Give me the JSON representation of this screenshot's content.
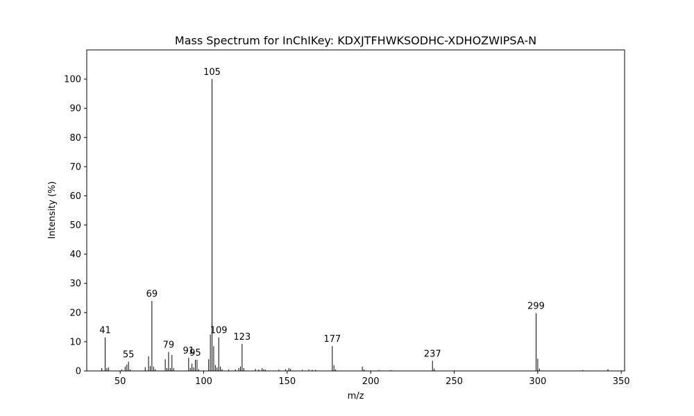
{
  "chart_data": {
    "type": "bar",
    "title": "Mass Spectrum for InChIKey: KDXJTFHWKSODHC-XDHOZWIPSA-N",
    "xlabel": "m/z",
    "ylabel": "Intensity (%)",
    "xlim": [
      30,
      352
    ],
    "ylim": [
      0,
      110
    ],
    "xticks": [
      50,
      100,
      150,
      200,
      250,
      300,
      350
    ],
    "yticks": [
      0,
      10,
      20,
      30,
      40,
      50,
      60,
      70,
      80,
      90,
      100
    ],
    "grid": false,
    "bar_color": "#000000",
    "peaks": [
      {
        "mz": 39,
        "intensity": 1.0
      },
      {
        "mz": 41,
        "intensity": 11.5,
        "label": "41"
      },
      {
        "mz": 42,
        "intensity": 1.0
      },
      {
        "mz": 43,
        "intensity": 1.2
      },
      {
        "mz": 51,
        "intensity": 0.5
      },
      {
        "mz": 53,
        "intensity": 1.5
      },
      {
        "mz": 54,
        "intensity": 2.2
      },
      {
        "mz": 55,
        "intensity": 3.2,
        "label": "55"
      },
      {
        "mz": 56,
        "intensity": 0.5
      },
      {
        "mz": 65,
        "intensity": 1.3
      },
      {
        "mz": 67,
        "intensity": 5.0
      },
      {
        "mz": 68,
        "intensity": 1.7
      },
      {
        "mz": 69,
        "intensity": 24.0,
        "label": "69"
      },
      {
        "mz": 70,
        "intensity": 1.5
      },
      {
        "mz": 71,
        "intensity": 0.6
      },
      {
        "mz": 77,
        "intensity": 4.0
      },
      {
        "mz": 78,
        "intensity": 1.0
      },
      {
        "mz": 79,
        "intensity": 6.5,
        "label": "79"
      },
      {
        "mz": 80,
        "intensity": 1.0
      },
      {
        "mz": 81,
        "intensity": 5.5
      },
      {
        "mz": 82,
        "intensity": 1.0
      },
      {
        "mz": 91,
        "intensity": 4.5,
        "label": "91"
      },
      {
        "mz": 92,
        "intensity": 1.0
      },
      {
        "mz": 93,
        "intensity": 2.5
      },
      {
        "mz": 94,
        "intensity": 1.2
      },
      {
        "mz": 95,
        "intensity": 3.8,
        "label": "95"
      },
      {
        "mz": 96,
        "intensity": 3.8
      },
      {
        "mz": 97,
        "intensity": 0.6
      },
      {
        "mz": 103,
        "intensity": 4.0
      },
      {
        "mz": 104,
        "intensity": 12.5
      },
      {
        "mz": 105,
        "intensity": 100.0,
        "label": "105"
      },
      {
        "mz": 106,
        "intensity": 8.5
      },
      {
        "mz": 107,
        "intensity": 2.0
      },
      {
        "mz": 108,
        "intensity": 1.2
      },
      {
        "mz": 109,
        "intensity": 11.5,
        "label": "109"
      },
      {
        "mz": 110,
        "intensity": 1.5
      },
      {
        "mz": 111,
        "intensity": 0.6
      },
      {
        "mz": 115,
        "intensity": 0.5
      },
      {
        "mz": 119,
        "intensity": 0.5
      },
      {
        "mz": 121,
        "intensity": 1.0
      },
      {
        "mz": 122,
        "intensity": 1.5
      },
      {
        "mz": 123,
        "intensity": 9.3,
        "label": "123"
      },
      {
        "mz": 124,
        "intensity": 1.0
      },
      {
        "mz": 131,
        "intensity": 0.7
      },
      {
        "mz": 133,
        "intensity": 0.5
      },
      {
        "mz": 135,
        "intensity": 1.0
      },
      {
        "mz": 136,
        "intensity": 0.6
      },
      {
        "mz": 137,
        "intensity": 0.4
      },
      {
        "mz": 145,
        "intensity": 0.4
      },
      {
        "mz": 149,
        "intensity": 0.6
      },
      {
        "mz": 151,
        "intensity": 1.0
      },
      {
        "mz": 152,
        "intensity": 0.7
      },
      {
        "mz": 159,
        "intensity": 0.4
      },
      {
        "mz": 163,
        "intensity": 0.5
      },
      {
        "mz": 165,
        "intensity": 0.4
      },
      {
        "mz": 167,
        "intensity": 0.4
      },
      {
        "mz": 177,
        "intensity": 8.5,
        "label": "177"
      },
      {
        "mz": 178,
        "intensity": 2.0
      },
      {
        "mz": 179,
        "intensity": 0.5
      },
      {
        "mz": 195,
        "intensity": 1.5
      },
      {
        "mz": 196,
        "intensity": 0.5
      },
      {
        "mz": 205,
        "intensity": 0.3
      },
      {
        "mz": 212,
        "intensity": 0.3
      },
      {
        "mz": 237,
        "intensity": 3.5,
        "label": "237"
      },
      {
        "mz": 238,
        "intensity": 0.8
      },
      {
        "mz": 299,
        "intensity": 19.8,
        "label": "299"
      },
      {
        "mz": 300,
        "intensity": 4.2
      },
      {
        "mz": 301,
        "intensity": 0.8
      },
      {
        "mz": 327,
        "intensity": 0.3
      },
      {
        "mz": 342,
        "intensity": 0.6
      }
    ]
  }
}
